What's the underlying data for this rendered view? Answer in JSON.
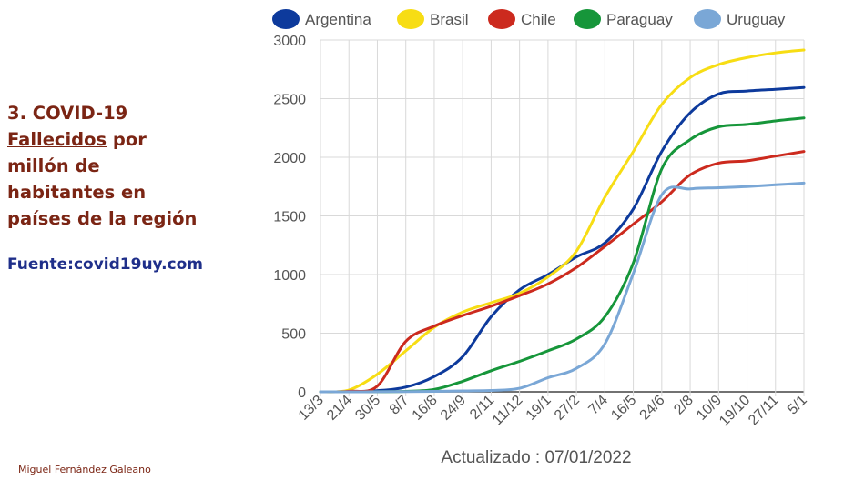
{
  "side": {
    "title_line1": "3. COVID-19",
    "title_word": "Fallecidos",
    "title_rest": " por",
    "title_line3": "millón de",
    "title_line4": "habitantes en",
    "title_line5": "países de la región",
    "source": "Fuente:covid19uy.com",
    "author": "Miguel Fernández Galeano"
  },
  "chart_data": {
    "type": "line",
    "xlabel": "Actualizado : 07/01/2022",
    "ylabel": "",
    "ylim": [
      0,
      3000
    ],
    "yticks": [
      0,
      500,
      1000,
      1500,
      2000,
      2500,
      3000
    ],
    "x_tick_labels": [
      "13/3",
      "21/4",
      "30/5",
      "8/7",
      "16/8",
      "24/9",
      "2/11",
      "11/12",
      "19/1",
      "27/2",
      "7/4",
      "16/5",
      "24/6",
      "2/8",
      "10/9",
      "19/10",
      "27/11",
      "5/1"
    ],
    "grid": true,
    "legend_position": "top",
    "series": [
      {
        "name": "Argentina",
        "color": "#0d3a9c",
        "values": [
          0,
          2,
          10,
          40,
          130,
          300,
          640,
          870,
          1000,
          1150,
          1270,
          1560,
          2050,
          2380,
          2540,
          2565,
          2580,
          2595
        ]
      },
      {
        "name": "Brasil",
        "color": "#f7dd14",
        "values": [
          0,
          15,
          150,
          350,
          550,
          680,
          760,
          840,
          980,
          1200,
          1660,
          2050,
          2450,
          2680,
          2790,
          2850,
          2890,
          2915
        ]
      },
      {
        "name": "Chile",
        "color": "#cc2a1e",
        "values": [
          0,
          5,
          50,
          430,
          560,
          650,
          730,
          820,
          920,
          1060,
          1240,
          1430,
          1620,
          1850,
          1950,
          1970,
          2010,
          2050
        ]
      },
      {
        "name": "Paraguay",
        "color": "#16963a",
        "values": [
          0,
          0,
          1,
          4,
          20,
          90,
          180,
          260,
          350,
          450,
          640,
          1100,
          1900,
          2150,
          2260,
          2280,
          2310,
          2335
        ]
      },
      {
        "name": "Uruguay",
        "color": "#7aa7d6",
        "values": [
          0,
          0,
          1,
          2,
          4,
          8,
          12,
          30,
          120,
          200,
          410,
          1010,
          1680,
          1730,
          1740,
          1750,
          1765,
          1780
        ]
      }
    ]
  }
}
